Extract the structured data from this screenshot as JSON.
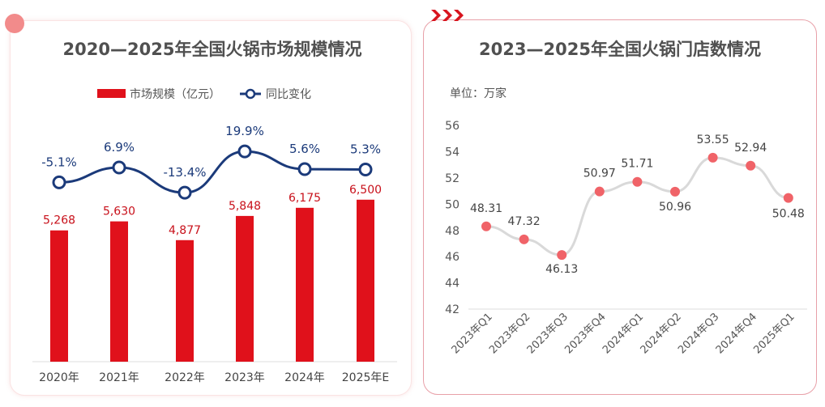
{
  "chart_data": [
    {
      "type": "bar+line",
      "title": "2020—2025年全国火锅市场规模情况",
      "categories": [
        "2020年",
        "2021年",
        "2022年",
        "2023年",
        "2024年",
        "2025年E"
      ],
      "series": [
        {
          "name": "市场规模（亿元）",
          "type": "bar",
          "values": [
            5268,
            5630,
            4877,
            5848,
            6175,
            6500
          ],
          "labels": [
            "5,268",
            "5,630",
            "4,877",
            "5,848",
            "6,175",
            "6,500"
          ],
          "color": "#e0111b"
        },
        {
          "name": "同比变化",
          "type": "line",
          "values": [
            -5.1,
            6.9,
            -13.4,
            19.9,
            5.6,
            5.3
          ],
          "labels": [
            "-5.1%",
            "6.9%",
            "-13.4%",
            "19.9%",
            "5.6%",
            "5.3%"
          ],
          "color": "#1b3a7a"
        }
      ],
      "legend": "top"
    },
    {
      "type": "line",
      "title": "2023—2025年全国火锅门店数情况",
      "unit": "单位：万家",
      "categories": [
        "2023年Q1",
        "2023年Q2",
        "2023年Q3",
        "2023年Q4",
        "2024年Q1",
        "2024年Q2",
        "2024年Q3",
        "2024年Q4",
        "2025年Q1"
      ],
      "values": [
        48.31,
        47.32,
        46.13,
        50.97,
        51.71,
        50.96,
        53.55,
        52.94,
        50.48
      ],
      "ylim": [
        42,
        56
      ],
      "yticks": [
        42,
        44,
        46,
        48,
        50,
        52,
        54,
        56
      ],
      "color": "#f06368",
      "line_color": "#d9d9d9"
    }
  ]
}
